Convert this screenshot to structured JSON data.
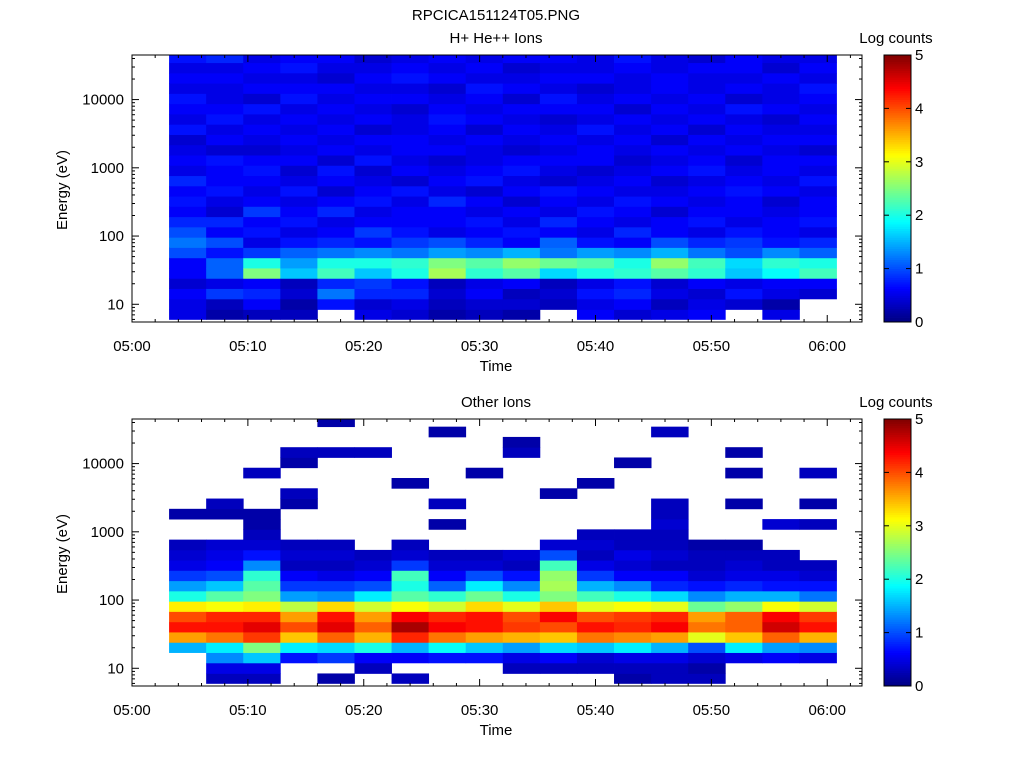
{
  "figure_title": "RPCICA151124T05.PNG",
  "chart_data": [
    {
      "type": "heatmap",
      "title": "H+ He++ Ions",
      "xlabel": "Time",
      "ylabel": "Energy (eV)",
      "x_ticks": [
        "05:00",
        "05:10",
        "05:20",
        "05:30",
        "05:40",
        "05:50",
        "06:00"
      ],
      "xlim_minutes": [
        0,
        63
      ],
      "y_scale": "log",
      "ylim": [
        5.5,
        45000
      ],
      "y_ticks": [
        {
          "value": 10,
          "label": "10"
        },
        {
          "value": 100,
          "label": "100"
        },
        {
          "value": 1000,
          "label": "1000"
        },
        {
          "value": 10000,
          "label": "10000"
        }
      ],
      "colorbar": {
        "label": "Log counts",
        "min": 0,
        "max": 5,
        "ticks": [
          "0",
          "1",
          "2",
          "3",
          "4",
          "5"
        ]
      },
      "time_bins_minutes": [
        3.2,
        6.4,
        9.6,
        12.8,
        16.0,
        19.2,
        22.4,
        25.6,
        28.8,
        32.0,
        35.2,
        38.4,
        41.6,
        44.8,
        48.0,
        51.2,
        54.4,
        57.6,
        60.8
      ],
      "energy_bins_eV": [
        6.0,
        8.4,
        12.0,
        17.0,
        24.0,
        34.0,
        48.0,
        68.0,
        96.0,
        136.0,
        192.0,
        272.0,
        384.0,
        543.0,
        768.0,
        1086.0,
        1536.0,
        2172.0,
        3072.0,
        4344.0,
        6144.0,
        8689.0,
        12288.0,
        17378.0,
        24576.0,
        34755.0,
        45000.0
      ],
      "log_counts": [
        [
          0.5,
          0.5,
          0.6,
          0.4,
          0.6,
          0.6,
          1.0,
          1.2,
          1.0,
          0.8,
          0.6,
          0.7,
          0.6,
          0.8,
          0.5,
          0.6,
          0.5,
          0.4,
          0.7,
          0.5,
          0.6,
          0.7,
          0.5,
          0.6,
          0.5,
          0.7
        ],
        [
          0.2,
          0.3,
          0.9,
          0.5,
          1.1,
          1.1,
          0.7,
          1.0,
          0.6,
          0.8,
          0.4,
          0.5,
          0.7,
          0.6,
          0.6,
          0.7,
          0.4,
          0.6,
          0.5,
          0.7,
          0.6,
          0.5,
          0.5,
          0.6,
          0.5,
          0.8
        ],
        [
          0.3,
          0.6,
          0.8,
          0.6,
          2.5,
          2.0,
          0.9,
          0.5,
          0.7,
          0.6,
          0.9,
          0.6,
          0.5,
          0.6,
          0.7,
          0.6,
          0.4,
          0.5,
          0.6,
          0.5,
          0.7,
          0.4,
          0.6,
          0.5,
          0.6,
          0.5
        ],
        [
          0.3,
          0.2,
          0.4,
          0.3,
          1.6,
          1.4,
          1.1,
          0.7,
          0.5,
          0.7,
          0.6,
          0.5,
          0.7,
          0.5,
          0.4,
          0.6,
          0.5,
          0.6,
          0.5,
          0.6,
          0.5,
          0.7,
          0.6,
          0.5,
          0.7,
          0.6
        ],
        [
          null,
          0.7,
          1.2,
          0.8,
          2.2,
          2.0,
          1.2,
          0.8,
          0.6,
          0.5,
          0.8,
          0.6,
          0.4,
          0.6,
          0.7,
          0.4,
          0.6,
          0.5,
          0.6,
          0.5,
          0.6,
          0.5,
          0.6,
          0.4,
          0.5,
          0.6
        ],
        [
          0.5,
          0.4,
          0.8,
          0.9,
          1.6,
          2.0,
          1.3,
          0.7,
          0.9,
          0.6,
          0.5,
          0.7,
          0.6,
          0.5,
          0.4,
          0.7,
          0.5,
          0.6,
          0.4,
          0.6,
          0.5,
          0.6,
          0.5,
          0.6,
          0.5,
          0.4
        ],
        [
          0.4,
          0.5,
          0.8,
          0.7,
          2.0,
          2.1,
          1.2,
          0.9,
          0.7,
          0.6,
          0.6,
          0.5,
          0.7,
          0.4,
          0.6,
          0.5,
          0.6,
          0.6,
          0.5,
          0.5,
          0.4,
          0.6,
          0.5,
          0.7,
          0.6,
          0.5
        ],
        [
          0.2,
          0.3,
          0.4,
          0.3,
          2.7,
          2.5,
          1.4,
          1.0,
          0.5,
          0.6,
          0.6,
          0.8,
          0.5,
          0.6,
          0.5,
          0.4,
          0.6,
          0.5,
          0.6,
          0.7,
          0.6,
          0.5,
          0.4,
          0.6,
          0.5,
          0.6
        ],
        [
          0.3,
          0.4,
          0.6,
          0.5,
          2.1,
          2.3,
          1.3,
          0.8,
          0.6,
          0.7,
          0.5,
          0.6,
          0.4,
          0.7,
          0.6,
          0.5,
          0.5,
          0.6,
          0.4,
          0.6,
          0.5,
          0.6,
          0.7,
          0.5,
          0.6,
          0.5
        ],
        [
          0.2,
          0.4,
          0.3,
          0.6,
          2.3,
          2.6,
          1.5,
          0.6,
          0.7,
          0.5,
          0.6,
          0.4,
          0.6,
          0.5,
          0.7,
          0.6,
          0.4,
          0.5,
          0.6,
          0.5,
          0.6,
          0.4,
          0.6,
          0.5,
          0.4,
          0.6
        ],
        [
          null,
          0.3,
          0.4,
          0.3,
          1.7,
          2.4,
          1.2,
          1.1,
          0.6,
          0.8,
          0.5,
          0.6,
          0.7,
          0.4,
          0.5,
          0.6,
          0.5,
          0.6,
          0.5,
          0.4,
          0.6,
          0.7,
          0.5,
          0.6,
          0.5,
          0.6
        ],
        [
          0.6,
          0.5,
          0.7,
          0.5,
          2.0,
          2.3,
          1.4,
          0.7,
          0.5,
          0.6,
          0.7,
          0.5,
          0.6,
          0.5,
          0.4,
          0.6,
          0.6,
          0.5,
          0.7,
          0.5,
          0.6,
          0.5,
          0.4,
          0.6,
          0.5,
          0.5
        ],
        [
          0.4,
          0.6,
          0.8,
          0.7,
          2.1,
          2.0,
          1.3,
          0.6,
          0.8,
          0.5,
          0.6,
          0.7,
          0.5,
          0.6,
          0.5,
          0.4,
          0.5,
          0.6,
          0.5,
          0.6,
          0.4,
          0.6,
          0.5,
          0.5,
          0.6,
          0.7
        ],
        [
          0.5,
          0.3,
          0.5,
          0.4,
          2.3,
          2.6,
          1.5,
          1.0,
          0.6,
          0.6,
          0.4,
          0.6,
          0.5,
          0.4,
          0.6,
          0.5,
          0.6,
          0.4,
          0.6,
          0.5,
          0.6,
          0.5,
          0.6,
          0.6,
          0.5,
          0.5
        ],
        [
          0.6,
          0.5,
          0.4,
          0.6,
          2.1,
          2.2,
          1.2,
          0.8,
          0.5,
          0.7,
          0.6,
          0.5,
          0.6,
          0.5,
          0.7,
          0.6,
          0.5,
          0.6,
          0.4,
          0.6,
          0.5,
          0.6,
          0.5,
          0.5,
          0.6,
          0.4
        ],
        [
          null,
          0.4,
          0.7,
          0.5,
          1.6,
          1.7,
          1.0,
          0.9,
          0.7,
          0.5,
          0.6,
          0.6,
          0.7,
          0.6,
          0.5,
          0.4,
          0.6,
          0.5,
          0.6,
          0.5,
          0.7,
          0.4,
          0.6,
          0.5,
          0.6,
          0.6
        ],
        [
          0.5,
          0.2,
          0.5,
          0.6,
          1.9,
          2.1,
          1.3,
          0.7,
          0.6,
          0.6,
          0.5,
          0.4,
          0.6,
          0.5,
          0.6,
          0.6,
          0.5,
          0.6,
          0.5,
          0.4,
          0.6,
          0.5,
          0.5,
          0.6,
          0.4,
          0.5
        ],
        [
          null,
          null,
          0.4,
          0.6,
          2.2,
          2.0,
          1.1,
          0.8,
          0.5,
          0.7,
          0.6,
          0.6,
          0.5,
          0.7,
          0.5,
          0.6,
          0.4,
          0.6,
          0.5,
          0.6,
          0.5,
          0.6,
          0.7,
          0.5,
          0.6,
          0.5
        ],
        [
          0.5,
          0.8,
          0.5,
          0.6,
          2.4,
          2.2,
          1.4,
          0.9,
          0.6,
          0.5,
          0.4,
          0.6,
          0.6,
          0.5,
          0.6,
          0.4,
          0.6,
          0.5,
          0.6,
          0.5,
          0.6,
          0.5,
          0.6,
          0.4,
          0.6,
          0.6
        ]
      ]
    },
    {
      "type": "heatmap",
      "title": "Other Ions",
      "xlabel": "Time",
      "ylabel": "Energy (eV)",
      "x_ticks": [
        "05:00",
        "05:10",
        "05:20",
        "05:30",
        "05:40",
        "05:50",
        "06:00"
      ],
      "xlim_minutes": [
        0,
        63
      ],
      "y_scale": "log",
      "ylim": [
        5.5,
        45000
      ],
      "y_ticks": [
        {
          "value": 10,
          "label": "10"
        },
        {
          "value": 100,
          "label": "100"
        },
        {
          "value": 1000,
          "label": "1000"
        },
        {
          "value": 10000,
          "label": "10000"
        }
      ],
      "colorbar": {
        "label": "Log counts",
        "min": 0,
        "max": 5,
        "ticks": [
          "0",
          "1",
          "2",
          "3",
          "4",
          "5"
        ]
      },
      "time_bins_minutes": [
        3.2,
        6.4,
        9.6,
        12.8,
        16.0,
        19.2,
        22.4,
        25.6,
        28.8,
        32.0,
        35.2,
        38.4,
        41.6,
        44.8,
        48.0,
        51.2,
        54.4,
        57.6,
        60.8
      ],
      "energy_bins_eV": [
        6.0,
        8.4,
        12.0,
        17.0,
        24.0,
        34.0,
        48.0,
        68.0,
        96.0,
        136.0,
        192.0,
        272.0,
        384.0,
        543.0,
        768.0,
        1086.0,
        1536.0,
        2172.0,
        3072.0,
        4344.0,
        6144.0,
        8689.0,
        12288.0,
        17378.0,
        24576.0,
        34755.0,
        45000.0
      ],
      "log_counts": [
        [
          null,
          null,
          null,
          1.5,
          3.6,
          4.3,
          4.0,
          3.2,
          2.0,
          1.4,
          0.9,
          0.5,
          0.4,
          0.3,
          null,
          null,
          0.2,
          null,
          null,
          null,
          null,
          null,
          null,
          null,
          null,
          null
        ],
        [
          0.3,
          0.5,
          1.3,
          1.8,
          3.8,
          4.3,
          4.2,
          3.1,
          2.3,
          1.6,
          1.0,
          0.6,
          0.5,
          0.4,
          null,
          null,
          0.2,
          0.3,
          null,
          null,
          null,
          null,
          null,
          null,
          null,
          null
        ],
        [
          0.3,
          0.5,
          1.6,
          2.5,
          4.1,
          4.5,
          4.2,
          3.2,
          2.5,
          2.3,
          2.1,
          1.3,
          0.7,
          0.4,
          0.3,
          0.2,
          0.2,
          null,
          null,
          null,
          0.3,
          null,
          null,
          null,
          null,
          null
        ],
        [
          null,
          null,
          0.7,
          1.8,
          3.4,
          4.0,
          3.6,
          2.8,
          1.4,
          0.9,
          0.6,
          0.3,
          0.4,
          0.3,
          null,
          null,
          null,
          0.2,
          0.3,
          null,
          null,
          0.2,
          0.3,
          null,
          null,
          null
        ],
        [
          0.2,
          null,
          0.9,
          1.7,
          3.9,
          4.5,
          4.3,
          3.3,
          1.3,
          0.9,
          0.5,
          0.3,
          0.4,
          0.3,
          null,
          null,
          null,
          null,
          null,
          null,
          null,
          null,
          0.3,
          null,
          null,
          0.2
        ],
        [
          null,
          0.3,
          0.6,
          2.0,
          3.5,
          3.9,
          3.6,
          2.9,
          1.8,
          1.0,
          0.6,
          0.4,
          0.3,
          null,
          null,
          null,
          null,
          null,
          null,
          null,
          null,
          null,
          0.3,
          null,
          null,
          null
        ],
        [
          0.3,
          null,
          0.6,
          1.5,
          4.2,
          4.8,
          4.4,
          3.1,
          2.3,
          2.0,
          2.2,
          0.9,
          0.4,
          0.3,
          null,
          null,
          null,
          null,
          null,
          0.2,
          null,
          null,
          null,
          null,
          null,
          null
        ],
        [
          null,
          null,
          0.7,
          1.9,
          3.8,
          4.4,
          4.2,
          2.9,
          2.1,
          1.1,
          0.6,
          0.4,
          0.3,
          null,
          null,
          0.2,
          null,
          0.3,
          null,
          null,
          null,
          null,
          null,
          null,
          0.2,
          null
        ],
        [
          null,
          null,
          0.7,
          1.6,
          3.6,
          4.3,
          4.3,
          3.3,
          2.4,
          1.8,
          1.0,
          0.4,
          0.3,
          null,
          null,
          null,
          null,
          null,
          null,
          null,
          0.2,
          null,
          null,
          null,
          null,
          null
        ],
        [
          null,
          0.3,
          0.5,
          1.4,
          3.5,
          4.1,
          4.0,
          3.0,
          2.0,
          1.3,
          0.7,
          0.3,
          0.4,
          null,
          null,
          null,
          null,
          null,
          null,
          null,
          null,
          null,
          0.3,
          0.2,
          null,
          null
        ],
        [
          null,
          0.3,
          0.6,
          1.7,
          3.4,
          4.0,
          4.4,
          3.4,
          2.5,
          2.7,
          2.6,
          2.2,
          1.0,
          0.4,
          null,
          null,
          null,
          null,
          0.2,
          null,
          null,
          null,
          null,
          null,
          null,
          null
        ],
        [
          null,
          0.3,
          0.4,
          1.6,
          3.8,
          4.3,
          4.0,
          3.0,
          2.2,
          1.5,
          0.9,
          0.5,
          0.3,
          0.4,
          0.3,
          null,
          null,
          null,
          null,
          0.2,
          null,
          null,
          null,
          null,
          null,
          null
        ],
        [
          0.2,
          0.3,
          0.5,
          1.8,
          3.7,
          4.2,
          4.1,
          3.1,
          2.0,
          1.3,
          0.6,
          0.4,
          0.5,
          0.3,
          0.3,
          null,
          null,
          null,
          null,
          null,
          null,
          0.2,
          null,
          null,
          null,
          null
        ],
        [
          0.3,
          0.3,
          0.5,
          1.5,
          3.6,
          4.4,
          4.2,
          3.0,
          1.7,
          0.8,
          0.6,
          0.3,
          0.4,
          0.3,
          0.3,
          0.4,
          0.3,
          0.3,
          null,
          null,
          null,
          null,
          null,
          null,
          0.3,
          null
        ],
        [
          0.3,
          0.2,
          0.4,
          1.0,
          3.0,
          3.8,
          3.6,
          2.4,
          1.3,
          0.7,
          0.4,
          0.3,
          0.3,
          0.2,
          null,
          null,
          null,
          null,
          null,
          null,
          null,
          null,
          null,
          null,
          null,
          null
        ],
        [
          null,
          null,
          0.5,
          1.8,
          3.4,
          3.9,
          3.9,
          2.6,
          1.5,
          0.8,
          0.5,
          0.4,
          0.3,
          0.2,
          null,
          null,
          null,
          0.2,
          null,
          null,
          0.2,
          null,
          0.2,
          null,
          null,
          null
        ],
        [
          null,
          null,
          0.6,
          1.4,
          3.9,
          4.6,
          4.4,
          3.1,
          1.5,
          0.7,
          0.5,
          0.3,
          0.3,
          null,
          null,
          0.4,
          null,
          null,
          null,
          null,
          null,
          null,
          null,
          null,
          null,
          null
        ],
        [
          null,
          null,
          0.5,
          1.3,
          3.5,
          4.3,
          4.1,
          2.9,
          1.2,
          0.7,
          0.4,
          0.3,
          null,
          null,
          null,
          0.3,
          null,
          0.2,
          null,
          null,
          0.3,
          null,
          null,
          null,
          null,
          null
        ],
        [
          null,
          0.3,
          0.4,
          1.1,
          3.3,
          4.0,
          3.8,
          2.6,
          1.3,
          0.7,
          0.5,
          0.3,
          null,
          null,
          null,
          null,
          null,
          0.2,
          0.3,
          null,
          0.2,
          null,
          null,
          null,
          null,
          null
        ]
      ]
    }
  ]
}
